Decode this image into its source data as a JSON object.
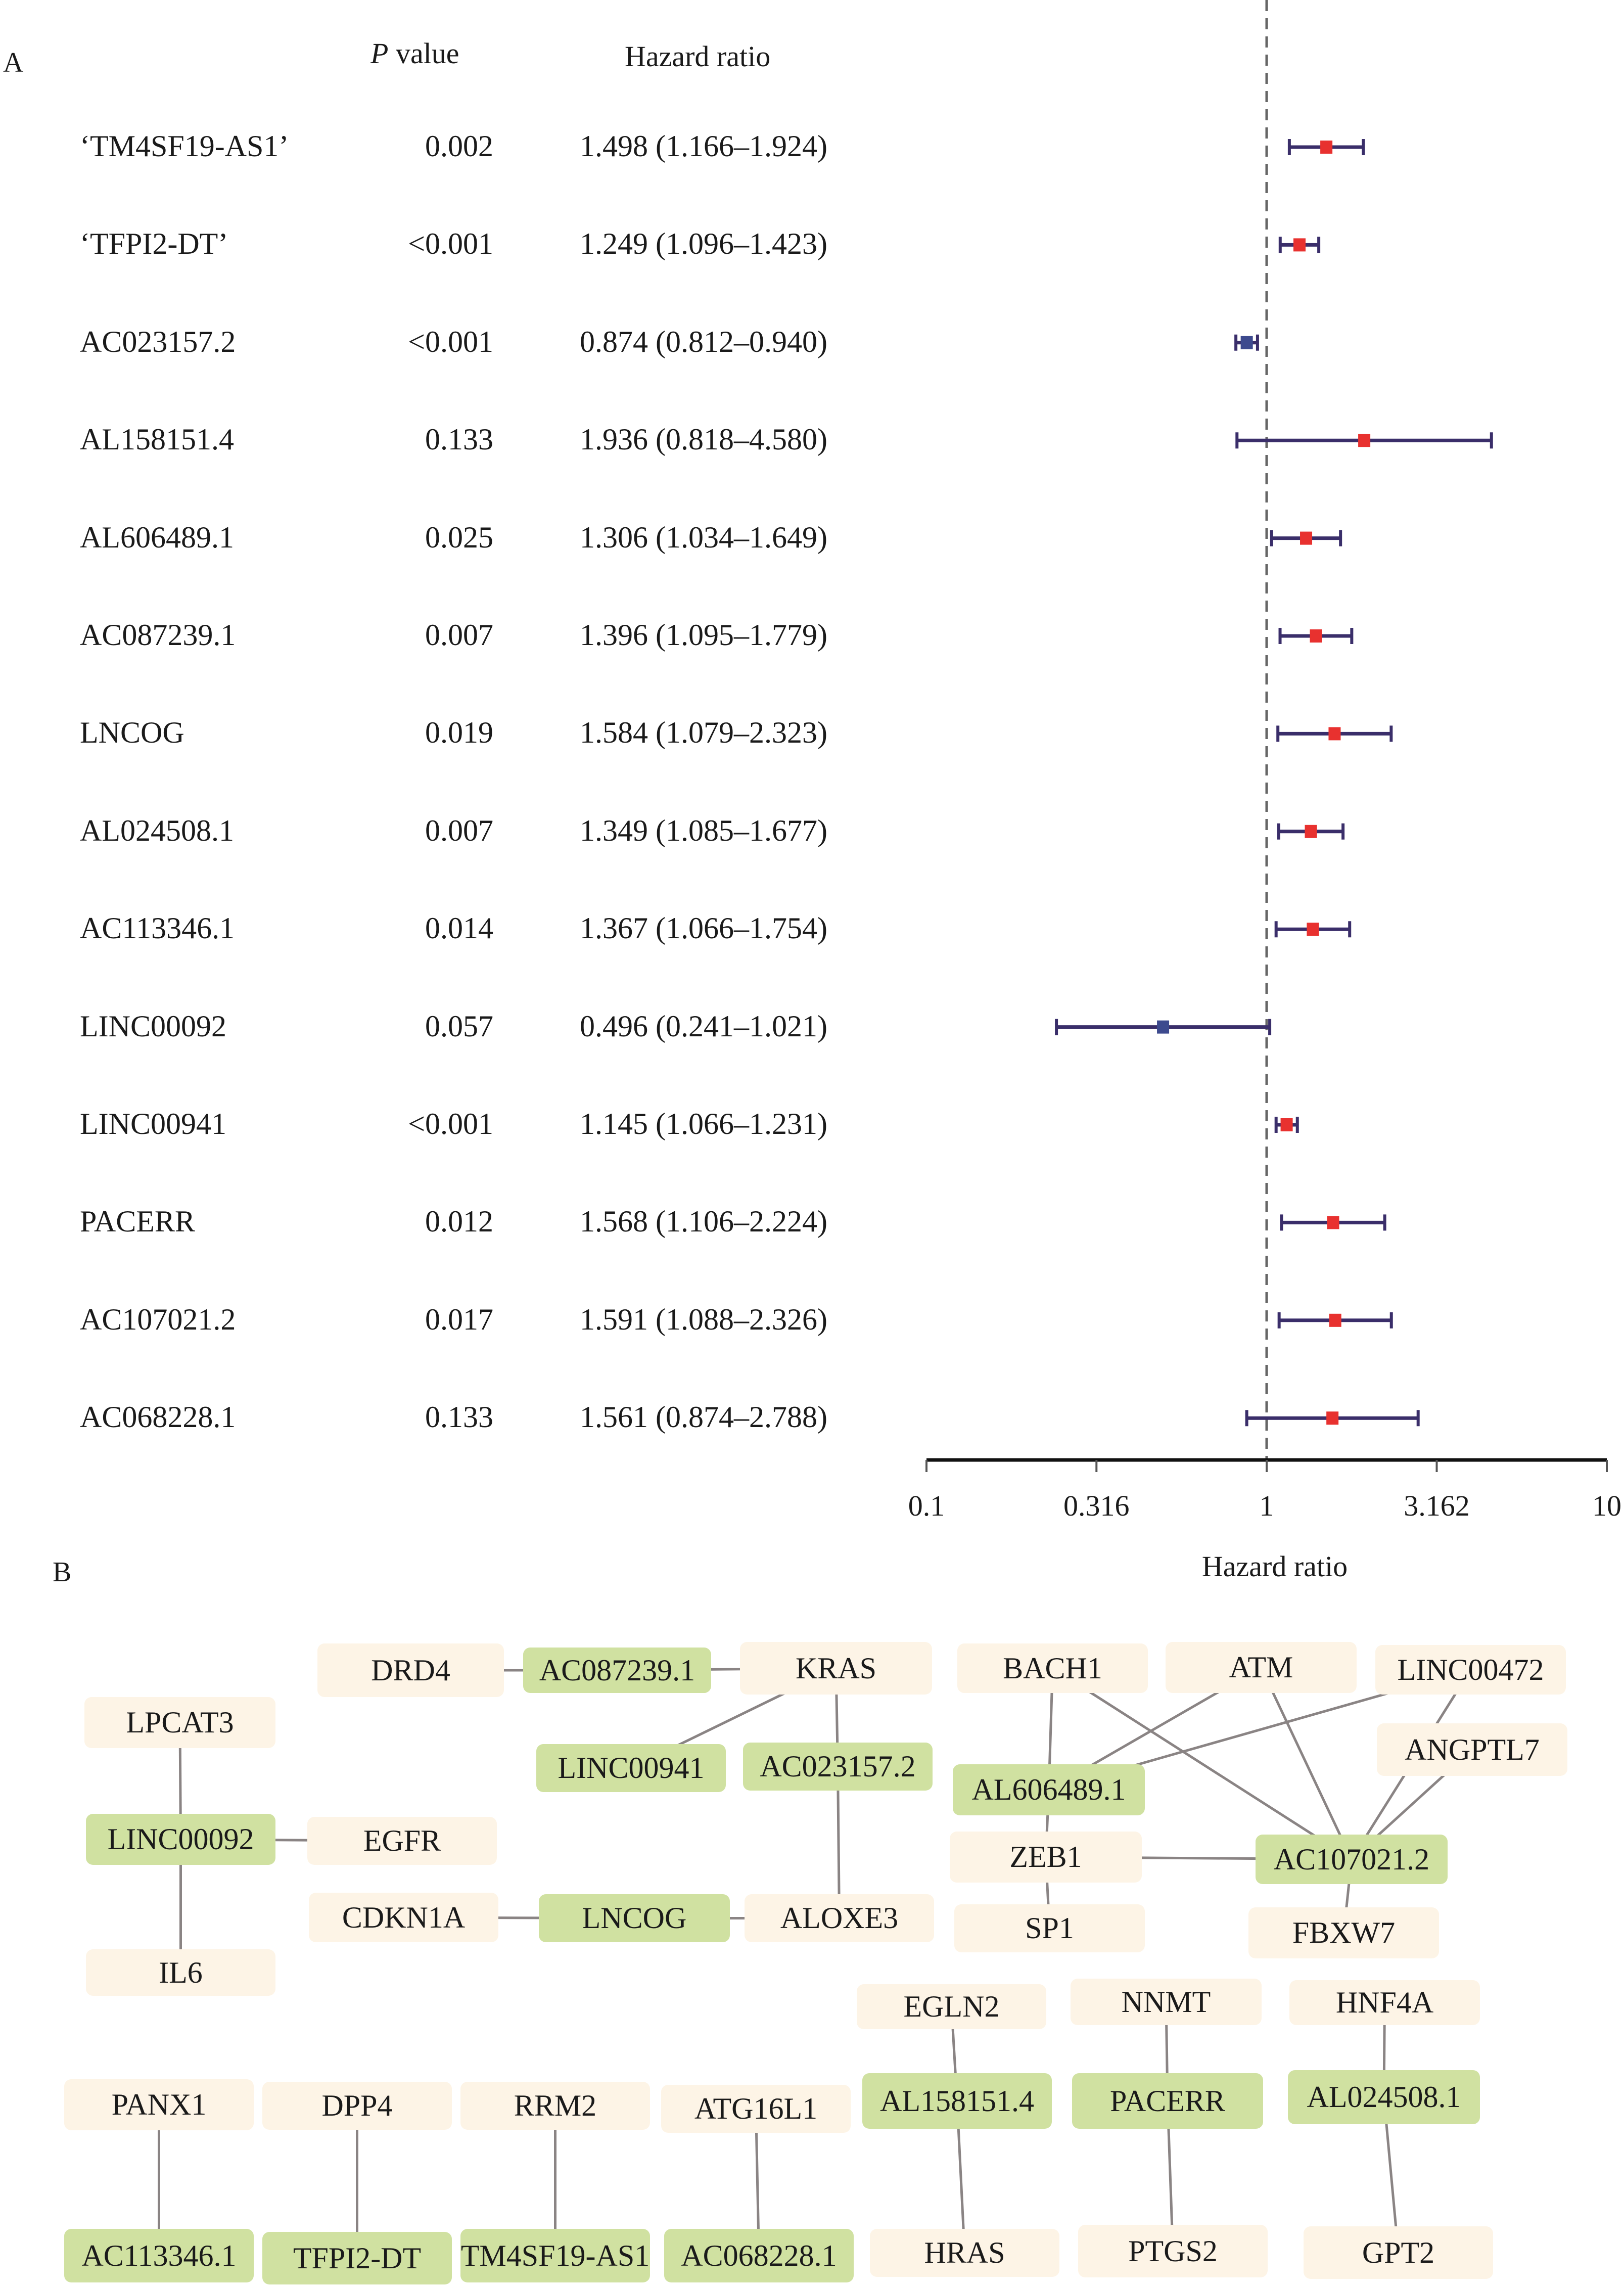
{
  "panel_a": {
    "letter": "A",
    "header_p_italic": "P",
    "header_p_rest": " value",
    "header_hr": "Hazard ratio"
  },
  "chart_data": {
    "type": "forest",
    "xlabel": "Hazard ratio",
    "xscale": "log",
    "xlim": [
      0.1,
      10
    ],
    "xticks": [
      "0.1",
      "0.316",
      "1",
      "3.162",
      "10"
    ],
    "xtick_values": [
      0.1,
      0.316,
      1,
      3.162,
      10
    ],
    "reference_line": 1,
    "colors": {
      "risk": "#e8312f",
      "protective": "#3d4a8e",
      "ci_line": "#3a2e6a",
      "ref_line": "#666666"
    },
    "rows": [
      {
        "gene": "‘TM4SF19-AS1’",
        "p": "0.002",
        "hr_text": "1.498 (1.166–1.924)",
        "hr": 1.498,
        "lo": 1.166,
        "hi": 1.924
      },
      {
        "gene": "‘TFPI2-DT’",
        "p": "<0.001",
        "hr_text": "1.249 (1.096–1.423)",
        "hr": 1.249,
        "lo": 1.096,
        "hi": 1.423
      },
      {
        "gene": "AC023157.2",
        "p": "<0.001",
        "hr_text": "0.874 (0.812–0.940)",
        "hr": 0.874,
        "lo": 0.812,
        "hi": 0.94
      },
      {
        "gene": "AL158151.4",
        "p": "0.133",
        "hr_text": "1.936 (0.818–4.580)",
        "hr": 1.936,
        "lo": 0.818,
        "hi": 4.58
      },
      {
        "gene": "AL606489.1",
        "p": "0.025",
        "hr_text": "1.306 (1.034–1.649)",
        "hr": 1.306,
        "lo": 1.034,
        "hi": 1.649
      },
      {
        "gene": "AC087239.1",
        "p": "0.007",
        "hr_text": "1.396 (1.095–1.779)",
        "hr": 1.396,
        "lo": 1.095,
        "hi": 1.779
      },
      {
        "gene": "LNCOG",
        "p": "0.019",
        "hr_text": "1.584 (1.079–2.323)",
        "hr": 1.584,
        "lo": 1.079,
        "hi": 2.323
      },
      {
        "gene": "AL024508.1",
        "p": "0.007",
        "hr_text": "1.349 (1.085–1.677)",
        "hr": 1.349,
        "lo": 1.085,
        "hi": 1.677
      },
      {
        "gene": "AC113346.1",
        "p": "0.014",
        "hr_text": "1.367 (1.066–1.754)",
        "hr": 1.367,
        "lo": 1.066,
        "hi": 1.754
      },
      {
        "gene": "LINC00092",
        "p": "0.057",
        "hr_text": "0.496 (0.241–1.021)",
        "hr": 0.496,
        "lo": 0.241,
        "hi": 1.021
      },
      {
        "gene": "LINC00941",
        "p": "<0.001",
        "hr_text": "1.145 (1.066–1.231)",
        "hr": 1.145,
        "lo": 1.066,
        "hi": 1.231
      },
      {
        "gene": "PACERR",
        "p": "0.012",
        "hr_text": "1.568 (1.106–2.224)",
        "hr": 1.568,
        "lo": 1.106,
        "hi": 2.224
      },
      {
        "gene": "AC107021.2",
        "p": "0.017",
        "hr_text": "1.591 (1.088–2.326)",
        "hr": 1.591,
        "lo": 1.088,
        "hi": 2.326
      },
      {
        "gene": "AC068228.1",
        "p": "0.133",
        "hr_text": "1.561 (0.874–2.788)",
        "hr": 1.561,
        "lo": 0.874,
        "hi": 2.788
      }
    ]
  },
  "panel_b": {
    "letter": "B",
    "colors": {
      "lncrna": "#d0e1a1",
      "gene": "#fdf4e6",
      "edge": "#8a8484"
    },
    "nodes": [
      {
        "id": "DRD4",
        "label": "DRD4",
        "kind": "gene"
      },
      {
        "id": "AC087239.1",
        "label": "AC087239.1",
        "kind": "lncrna"
      },
      {
        "id": "KRAS",
        "label": "KRAS",
        "kind": "gene"
      },
      {
        "id": "LPCAT3",
        "label": "LPCAT3",
        "kind": "gene"
      },
      {
        "id": "LINC00941",
        "label": "LINC00941",
        "kind": "lncrna"
      },
      {
        "id": "AC023157.2",
        "label": "AC023157.2",
        "kind": "lncrna"
      },
      {
        "id": "LINC00092",
        "label": "LINC00092",
        "kind": "lncrna"
      },
      {
        "id": "EGFR",
        "label": "EGFR",
        "kind": "gene"
      },
      {
        "id": "CDKN1A",
        "label": "CDKN1A",
        "kind": "gene"
      },
      {
        "id": "LNCOG",
        "label": "LNCOG",
        "kind": "lncrna"
      },
      {
        "id": "ALOXE3",
        "label": "ALOXE3",
        "kind": "gene"
      },
      {
        "id": "IL6",
        "label": "IL6",
        "kind": "gene"
      },
      {
        "id": "BACH1",
        "label": "BACH1",
        "kind": "gene"
      },
      {
        "id": "ATM",
        "label": "ATM",
        "kind": "gene"
      },
      {
        "id": "LINC00472",
        "label": "LINC00472",
        "kind": "gene"
      },
      {
        "id": "AL606489.1",
        "label": "AL606489.1",
        "kind": "lncrna"
      },
      {
        "id": "ANGPTL7",
        "label": "ANGPTL7",
        "kind": "gene"
      },
      {
        "id": "ZEB1",
        "label": "ZEB1",
        "kind": "gene"
      },
      {
        "id": "AC107021.2",
        "label": "AC107021.2",
        "kind": "lncrna"
      },
      {
        "id": "SP1",
        "label": "SP1",
        "kind": "gene"
      },
      {
        "id": "FBXW7",
        "label": "FBXW7",
        "kind": "gene"
      },
      {
        "id": "EGLN2",
        "label": "EGLN2",
        "kind": "gene"
      },
      {
        "id": "NNMT",
        "label": "NNMT",
        "kind": "gene"
      },
      {
        "id": "HNF4A",
        "label": "HNF4A",
        "kind": "gene"
      },
      {
        "id": "AL158151.4",
        "label": "AL158151.4",
        "kind": "lncrna"
      },
      {
        "id": "PACERR",
        "label": "PACERR",
        "kind": "lncrna"
      },
      {
        "id": "AL024508.1",
        "label": "AL024508.1",
        "kind": "lncrna"
      },
      {
        "id": "HRAS",
        "label": "HRAS",
        "kind": "gene"
      },
      {
        "id": "PTGS2",
        "label": "PTGS2",
        "kind": "gene"
      },
      {
        "id": "GPT2",
        "label": "GPT2",
        "kind": "gene"
      },
      {
        "id": "PANX1",
        "label": "PANX1",
        "kind": "gene"
      },
      {
        "id": "DPP4",
        "label": "DPP4",
        "kind": "gene"
      },
      {
        "id": "RRM2",
        "label": "RRM2",
        "kind": "gene"
      },
      {
        "id": "ATG16L1",
        "label": "ATG16L1",
        "kind": "gene"
      },
      {
        "id": "AC113346.1",
        "label": "AC113346.1",
        "kind": "lncrna"
      },
      {
        "id": "TFPI2-DT",
        "label": "TFPI2-DT",
        "kind": "lncrna"
      },
      {
        "id": "TM4SF19-AS1",
        "label": "TM4SF19-AS1",
        "kind": "lncrna"
      },
      {
        "id": "AC068228.1",
        "label": "AC068228.1",
        "kind": "lncrna"
      }
    ],
    "edges": [
      [
        "DRD4",
        "AC087239.1"
      ],
      [
        "AC087239.1",
        "KRAS"
      ],
      [
        "KRAS",
        "LINC00941"
      ],
      [
        "KRAS",
        "AC023157.2"
      ],
      [
        "AC023157.2",
        "ALOXE3"
      ],
      [
        "LPCAT3",
        "LINC00092"
      ],
      [
        "LINC00092",
        "EGFR"
      ],
      [
        "LINC00092",
        "IL6"
      ],
      [
        "CDKN1A",
        "LNCOG"
      ],
      [
        "LNCOG",
        "ALOXE3"
      ],
      [
        "BACH1",
        "AL606489.1"
      ],
      [
        "BACH1",
        "AC107021.2"
      ],
      [
        "ATM",
        "AL606489.1"
      ],
      [
        "ATM",
        "AC107021.2"
      ],
      [
        "LINC00472",
        "AL606489.1"
      ],
      [
        "LINC00472",
        "AC107021.2"
      ],
      [
        "ANGPTL7",
        "AC107021.2"
      ],
      [
        "AL606489.1",
        "ZEB1"
      ],
      [
        "ZEB1",
        "AC107021.2"
      ],
      [
        "ZEB1",
        "SP1"
      ],
      [
        "AC107021.2",
        "FBXW7"
      ],
      [
        "EGLN2",
        "AL158151.4"
      ],
      [
        "AL158151.4",
        "HRAS"
      ],
      [
        "NNMT",
        "PACERR"
      ],
      [
        "PACERR",
        "PTGS2"
      ],
      [
        "HNF4A",
        "AL024508.1"
      ],
      [
        "AL024508.1",
        "GPT2"
      ],
      [
        "PANX1",
        "AC113346.1"
      ],
      [
        "DPP4",
        "TFPI2-DT"
      ],
      [
        "RRM2",
        "TM4SF19-AS1"
      ],
      [
        "ATG16L1",
        "AC068228.1"
      ]
    ]
  }
}
